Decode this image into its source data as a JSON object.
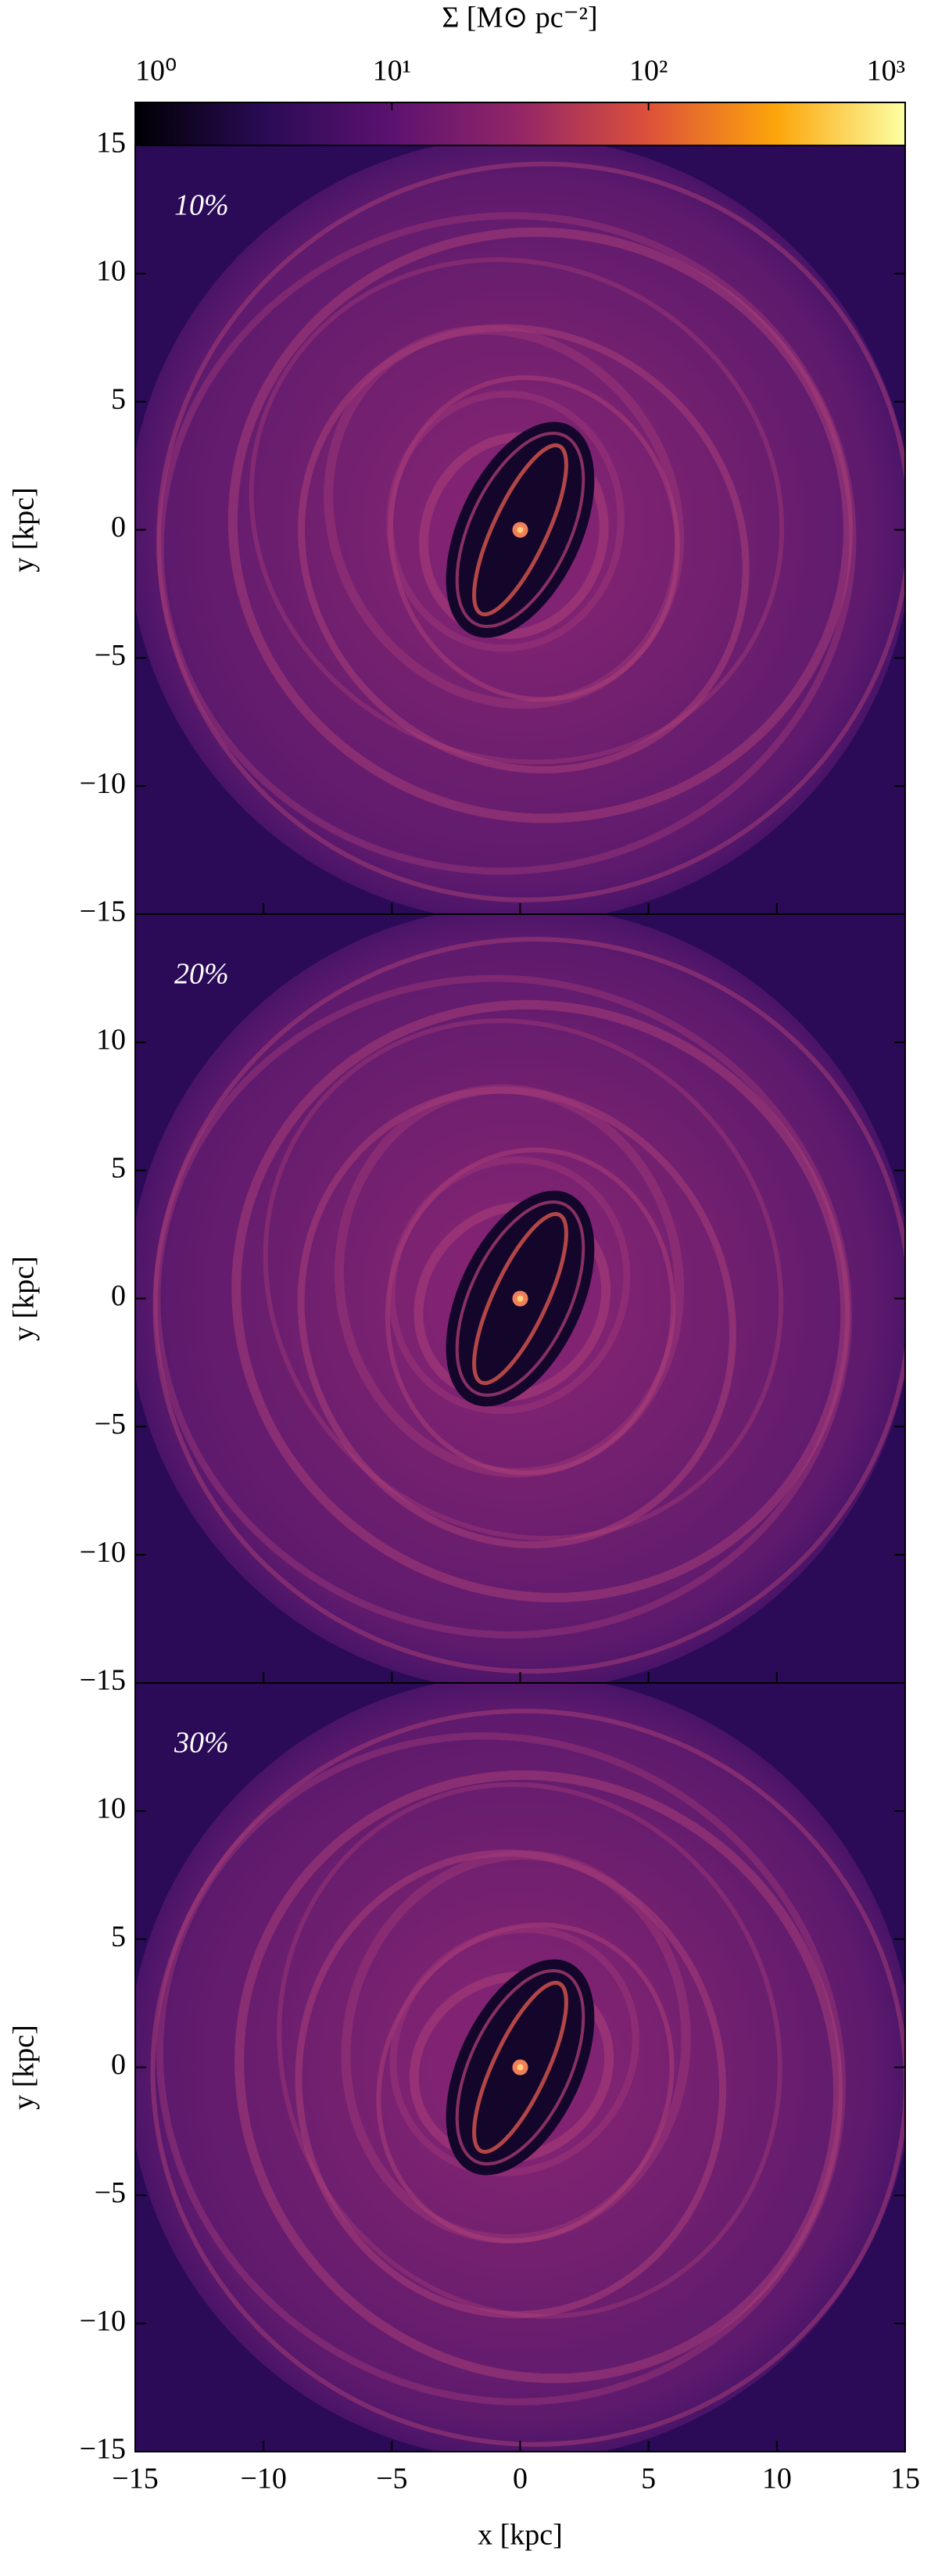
{
  "chart_data": {
    "type": "image",
    "colorbar": {
      "label": "Σ [M⊙ pc⁻²]",
      "log": true,
      "lim": [
        1,
        1000
      ],
      "ticks": [
        {
          "value": 1,
          "label": "10⁰"
        },
        {
          "value": 10,
          "label": "10¹"
        },
        {
          "value": 100,
          "label": "10²"
        },
        {
          "value": 1000,
          "label": "10³"
        }
      ],
      "colors": [
        "#000004",
        "#2a0b55",
        "#5c1270",
        "#932667",
        "#dd513a",
        "#fca50a",
        "#fcffa4"
      ]
    },
    "panels": [
      {
        "label": "10%",
        "ylabel": "y [kpc]",
        "xlim": [
          -15,
          15
        ],
        "ylim": [
          -15,
          15
        ],
        "yticks": [
          {
            "value": -15,
            "label": "−15"
          },
          {
            "value": -10,
            "label": "−10"
          },
          {
            "value": -5,
            "label": "−5"
          },
          0,
          5,
          10,
          15
        ]
      },
      {
        "label": "20%",
        "ylabel": "y [kpc]",
        "xlim": [
          -15,
          15
        ],
        "ylim": [
          -15,
          15
        ],
        "yticks": [
          {
            "value": -15,
            "label": "−15"
          },
          {
            "value": -10,
            "label": "−10"
          },
          {
            "value": -5,
            "label": "−5"
          },
          0,
          5,
          10
        ]
      },
      {
        "label": "30%",
        "ylabel": "y [kpc]",
        "xlabel": "x [kpc]",
        "xlim": [
          -15,
          15
        ],
        "ylim": [
          -15,
          15
        ],
        "yticks": [
          {
            "value": -15,
            "label": "−15"
          },
          {
            "value": -10,
            "label": "−10"
          },
          {
            "value": -5,
            "label": "−5"
          },
          0,
          5,
          10
        ],
        "xticks": [
          {
            "value": -15,
            "label": "−15"
          },
          {
            "value": -10,
            "label": "−10"
          },
          {
            "value": -5,
            "label": "−5"
          },
          0,
          5,
          10,
          15
        ]
      }
    ]
  }
}
